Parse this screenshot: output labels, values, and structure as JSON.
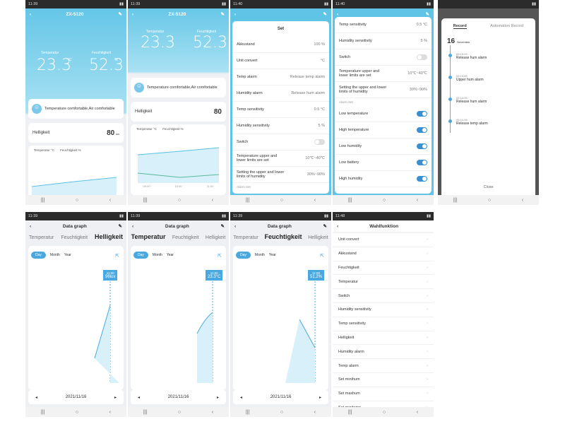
{
  "status": {
    "t1": "11:39",
    "t2": "11:39",
    "t3": "11:40",
    "t4": "11:40",
    "t8": "11:48"
  },
  "device": "ZX-5120",
  "main": {
    "temp_label": "Temperatur",
    "hum_label": "Feuchtigkeit",
    "temp": "23.3",
    "hum": "52.3",
    "temp_unit": "°C",
    "hum_unit": "%",
    "comfort": "Temperature comfortable,Air comfortable",
    "bright_label": "Helligkeit",
    "bright": "80",
    "bright_unit": "lux",
    "legend_t": "Temperatur °C",
    "legend_h": "Feuchtigkeit %",
    "tick1": "09:00",
    "tick2": "10:00",
    "tick3": "11:00"
  },
  "set": {
    "title": "Set",
    "rows": [
      {
        "l": "Akkustand",
        "v": "100 %"
      },
      {
        "l": "Unit convert",
        "v": "°C"
      },
      {
        "l": "Temp alarm",
        "v": "Release temp alarm"
      },
      {
        "l": "Humidity alarm",
        "v": "Release hum alarm"
      },
      {
        "l": "Temp sensitivity",
        "v": "0.5 °C"
      },
      {
        "l": "Humidity sensitivity",
        "v": "5 %"
      },
      {
        "l": "Switch",
        "v": ""
      },
      {
        "l": "Temperature upper and lower limits are set",
        "v": "10℃~40℃"
      },
      {
        "l": "Setting the upper and lower limits of humidity",
        "v": "30%~90%"
      }
    ],
    "alarm_set": "Alarm Set"
  },
  "alarms": [
    "Low temperature",
    "High temperature",
    "Low humidity",
    "Low battery",
    "High humidity"
  ],
  "record": {
    "tab1": "Record",
    "tab2": "Automation Record",
    "day": "16",
    "month": "November",
    "items": [
      {
        "t": "09:15:29",
        "l": "Release hum alarm"
      },
      {
        "t": "09:15:00",
        "l": "Upper hum alarm"
      },
      {
        "t": "09:14:26",
        "l": "Release hum alarm"
      },
      {
        "t": "09:14:26",
        "l": "Release temp alarm"
      }
    ],
    "close": "Close"
  },
  "graph": {
    "title": "Data graph",
    "tabs": [
      "Temperatur",
      "Feuchtigkeit",
      "Helligkeit"
    ],
    "day": "Day",
    "month": "Month",
    "year": "Year",
    "date": "2021/11/16",
    "v1": "96lux",
    "v2": "23.3°C",
    "v3": "51.2%",
    "time": "11:00"
  },
  "wahl": {
    "title": "Wahlfunktion",
    "items": [
      "Unit convert",
      "Akkustand",
      "Feuchtigkeit",
      "Temperatur",
      "Switch",
      "Humidity sensitivity",
      "Temp sensitivity",
      "Helligkeit",
      "Humidity alarm",
      "Temp alarm",
      "Set minihum",
      "Set maxhum",
      "Set minitemp"
    ]
  },
  "icons": {
    "back": "back-icon",
    "edit": "edit-icon",
    "share": "share-icon",
    "nav": "nav-bar-icons"
  }
}
